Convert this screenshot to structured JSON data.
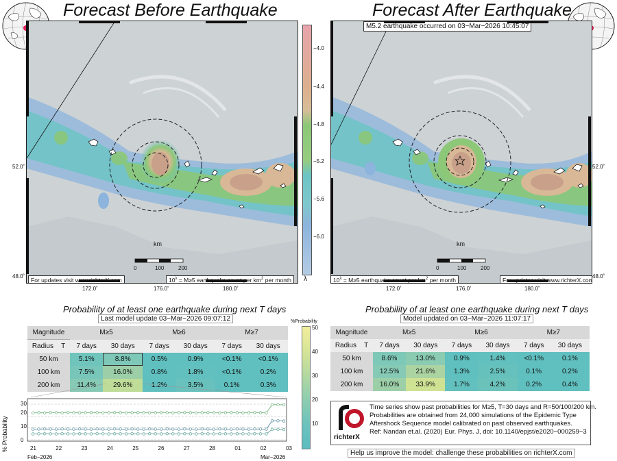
{
  "left_panel": {
    "title": "Forecast Before Earthquake",
    "note_updates": "For updates visit www.richterX.com",
    "note_unit_pre": "10",
    "note_unit_exp": "λ",
    "note_unit_mid": " = M≥5 earthquake count per km",
    "note_unit_sq": "2",
    "note_unit_post": " per month"
  },
  "right_panel": {
    "title": "Forecast After Earthquake",
    "quake_note": "M5.2 earthquake occurred on 03−Mar−2026 10:45:07",
    "note_updates": "For updates visit www.richterX.com",
    "note_unit_pre": "10",
    "note_unit_exp": "λ",
    "note_unit_mid": " = M≥5 earthquake count per km",
    "note_unit_sq": "2",
    "note_unit_post": " per month"
  },
  "map_axes": {
    "x_ticks": [
      "172.0˚",
      "176.0˚",
      "180.0˚"
    ],
    "y_ticks": [
      "52.0˚",
      "48.0˚"
    ],
    "scale_unit": "km",
    "scale_ticks": [
      "0",
      "100",
      "200"
    ]
  },
  "colorbar": {
    "ticks": [
      "−4.0",
      "−4.4",
      "−4.8",
      "−5.2",
      "−5.6",
      "−6.0"
    ],
    "label": "λ",
    "colors": [
      "#e0a0a8",
      "#d8b896",
      "#8cc878",
      "#6cc4c4",
      "#8cb4dc"
    ]
  },
  "prob_colorbar": {
    "title": "%Probability",
    "ticks": [
      "50",
      "40",
      "30",
      "20",
      "10"
    ]
  },
  "left_table": {
    "title": "Probability of at least one earthquake during next T days",
    "subtitle": "Last model update 03−Mar−2026 09:07:12",
    "col_magnitude": "Magnitude",
    "col_radius": "Radius",
    "col_t": "T",
    "mags": [
      "M≥5",
      "M≥6",
      "M≥7"
    ],
    "periods": [
      "7 days",
      "30 days",
      "7 days",
      "30 days",
      "7 days",
      "30 days"
    ],
    "rows": [
      {
        "radius": "50 km",
        "vals": [
          "5.1%",
          "8.8%",
          "0.5%",
          "0.9%",
          "<0.1%",
          "<0.1%"
        ]
      },
      {
        "radius": "100 km",
        "vals": [
          "7.5%",
          "16.0%",
          "0.8%",
          "1.8%",
          "<0.1%",
          "0.2%"
        ]
      },
      {
        "radius": "200 km",
        "vals": [
          "11.4%",
          "29.6%",
          "1.2%",
          "3.5%",
          "0.1%",
          "0.3%"
        ]
      }
    ]
  },
  "right_table": {
    "title": "Probability of at least one earthquake during next T days",
    "subtitle": "Model updated on 03−Mar−2026 11:07:17",
    "col_magnitude": "Magnitude",
    "col_radius": "Radius",
    "col_t": "T",
    "mags": [
      "M≥5",
      "M≥6",
      "M≥7"
    ],
    "periods": [
      "7 days",
      "30 days",
      "7 days",
      "30 days",
      "7 days",
      "30 days"
    ],
    "rows": [
      {
        "radius": "50 km",
        "vals": [
          "8.6%",
          "13.0%",
          "0.9%",
          "1.4%",
          "<0.1%",
          "0.1%"
        ]
      },
      {
        "radius": "100 km",
        "vals": [
          "12.5%",
          "21.6%",
          "1.3%",
          "2.5%",
          "0.1%",
          "0.2%"
        ]
      },
      {
        "radius": "200 km",
        "vals": [
          "16.0%",
          "33.9%",
          "1.7%",
          "4.2%",
          "0.2%",
          "0.4%"
        ]
      }
    ]
  },
  "chart_data": {
    "type": "line",
    "ylabel": "% Probability",
    "ylim": [
      0,
      30
    ],
    "y_ticks": [
      "0",
      "10",
      "20",
      "30"
    ],
    "x_ticks": [
      "21",
      "22",
      "23",
      "24",
      "25",
      "26",
      "27",
      "28",
      "01",
      "02",
      "03"
    ],
    "x_month_left": "Feb−2026",
    "x_month_right": "Mar−2026",
    "series": [
      {
        "values": [
          22.6,
          22.8,
          22.7,
          22.9,
          22.8,
          22.7,
          22.9,
          22.8,
          22.7,
          22.8,
          22.9,
          22.8,
          22.7,
          22.8,
          22.9,
          22.8,
          22.7,
          22.8,
          22.9,
          22.8,
          22.7,
          22.8,
          22.9,
          22.8,
          22.7,
          22.8,
          22.9,
          22.8,
          22.7,
          22.8,
          22.9,
          22.8,
          22.7,
          22.8,
          22.9,
          22.8,
          22.7,
          22.8,
          22.9,
          22.8,
          22.7,
          29.6,
          29.6,
          29.4
        ]
      },
      {
        "values": [
          8.9,
          9.0,
          9.1,
          9.0,
          8.9,
          9.1,
          9.0,
          8.9,
          9.1,
          9.0,
          8.9,
          9.1,
          9.0,
          8.9,
          9.1,
          9.0,
          8.9,
          9.1,
          9.0,
          8.9,
          9.1,
          9.0,
          8.9,
          9.1,
          9.0,
          8.9,
          9.1,
          9.0,
          8.9,
          9.1,
          9.0,
          8.9,
          9.1,
          9.0,
          8.9,
          9.1,
          9.0,
          8.9,
          9.1,
          9.0,
          8.9,
          16.0,
          16.0,
          15.8
        ]
      },
      {
        "values": [
          4.9,
          5.0,
          5.1,
          5.0,
          4.9,
          5.1,
          5.0,
          4.9,
          5.1,
          5.0,
          4.9,
          5.1,
          5.0,
          4.9,
          5.1,
          5.0,
          4.9,
          5.1,
          5.0,
          4.9,
          5.1,
          5.0,
          4.9,
          5.1,
          5.0,
          4.9,
          5.1,
          5.0,
          4.9,
          5.1,
          5.0,
          4.9,
          5.1,
          5.0,
          4.9,
          5.1,
          5.0,
          4.9,
          5.1,
          5.0,
          4.9,
          8.8,
          8.8,
          8.6
        ]
      }
    ]
  },
  "info_box": {
    "logo_text": "richterX",
    "lines": [
      "Time series show past probabilities for M≥5, T=30 days and R=50/100/200 km.",
      "Probabilities are obtained from 24,000 simulations of the Epidemic Type",
      "Aftershock Sequence model calibrated on past observed earthquakes.",
      "Ref: Nandan et.al. (2020) Eur. Phys. J, doi: 10.1140/epjst/e2020−000259−3"
    ]
  },
  "help_text": "Help us improve the model: challenge these probabilities on richterX.com"
}
